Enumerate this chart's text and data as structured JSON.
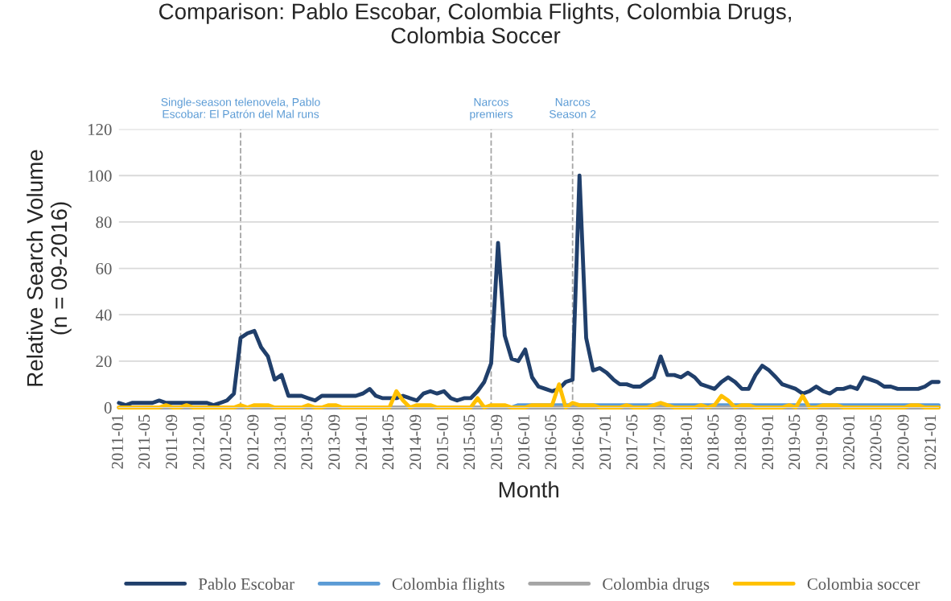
{
  "chart_data": {
    "type": "line",
    "title": "Comparison: Pablo Escobar, Colombia Flights, Colombia Drugs,\nColombia Soccer",
    "xlabel": "Month",
    "ylabel": "Relative Search Volume\n(n = 09-2016)",
    "x": [
      "2011-01",
      "2011-02",
      "2011-03",
      "2011-04",
      "2011-05",
      "2011-06",
      "2011-07",
      "2011-08",
      "2011-09",
      "2011-10",
      "2011-11",
      "2011-12",
      "2012-01",
      "2012-02",
      "2012-03",
      "2012-04",
      "2012-05",
      "2012-06",
      "2012-07",
      "2012-08",
      "2012-09",
      "2012-10",
      "2012-11",
      "2012-12",
      "2013-01",
      "2013-02",
      "2013-03",
      "2013-04",
      "2013-05",
      "2013-06",
      "2013-07",
      "2013-08",
      "2013-09",
      "2013-10",
      "2013-11",
      "2013-12",
      "2014-01",
      "2014-02",
      "2014-03",
      "2014-04",
      "2014-05",
      "2014-06",
      "2014-07",
      "2014-08",
      "2014-09",
      "2014-10",
      "2014-11",
      "2014-12",
      "2015-01",
      "2015-02",
      "2015-03",
      "2015-04",
      "2015-05",
      "2015-06",
      "2015-07",
      "2015-08",
      "2015-09",
      "2015-10",
      "2015-11",
      "2015-12",
      "2016-01",
      "2016-02",
      "2016-03",
      "2016-04",
      "2016-05",
      "2016-06",
      "2016-07",
      "2016-08",
      "2016-09",
      "2016-10",
      "2016-11",
      "2016-12",
      "2017-01",
      "2017-02",
      "2017-03",
      "2017-04",
      "2017-05",
      "2017-06",
      "2017-07",
      "2017-08",
      "2017-09",
      "2017-10",
      "2017-11",
      "2017-12",
      "2018-01",
      "2018-02",
      "2018-03",
      "2018-04",
      "2018-05",
      "2018-06",
      "2018-07",
      "2018-08",
      "2018-09",
      "2018-10",
      "2018-11",
      "2018-12",
      "2019-01",
      "2019-02",
      "2019-03",
      "2019-04",
      "2019-05",
      "2019-06",
      "2019-07",
      "2019-08",
      "2019-09",
      "2019-10",
      "2019-11",
      "2019-12",
      "2020-01",
      "2020-02",
      "2020-03",
      "2020-04",
      "2020-05",
      "2020-06",
      "2020-07",
      "2020-08",
      "2020-09",
      "2020-10",
      "2020-11",
      "2020-12",
      "2021-01",
      "2021-02"
    ],
    "xlim": [
      "2011-01",
      "2021-02"
    ],
    "xticks": [
      "2011-01",
      "2011-05",
      "2011-09",
      "2012-01",
      "2012-05",
      "2012-09",
      "2013-01",
      "2013-05",
      "2013-09",
      "2014-01",
      "2014-05",
      "2014-09",
      "2015-01",
      "2015-05",
      "2015-09",
      "2016-01",
      "2016-05",
      "2016-09",
      "2017-01",
      "2017-05",
      "2017-09",
      "2018-01",
      "2018-05",
      "2018-09",
      "2019-01",
      "2019-05",
      "2019-09",
      "2020-01",
      "2020-05",
      "2020-09",
      "2021-01"
    ],
    "series": [
      {
        "name": "Pablo Escobar",
        "color": "#203f6b",
        "values": [
          2,
          1,
          2,
          2,
          2,
          2,
          3,
          2,
          2,
          2,
          2,
          2,
          2,
          2,
          1,
          2,
          3,
          6,
          30,
          32,
          33,
          26,
          22,
          12,
          14,
          5,
          5,
          5,
          4,
          3,
          5,
          5,
          5,
          5,
          5,
          5,
          6,
          8,
          5,
          4,
          4,
          4,
          5,
          4,
          3,
          6,
          7,
          6,
          7,
          4,
          3,
          4,
          4,
          7,
          11,
          19,
          71,
          31,
          21,
          20,
          25,
          13,
          9,
          8,
          7,
          8,
          11,
          12,
          100,
          30,
          16,
          17,
          15,
          12,
          10,
          10,
          9,
          9,
          11,
          13,
          22,
          14,
          14,
          13,
          15,
          13,
          10,
          9,
          8,
          11,
          13,
          11,
          8,
          8,
          14,
          18,
          16,
          13,
          10,
          9,
          8,
          6,
          7,
          9,
          7,
          6,
          8,
          8,
          9,
          8,
          13,
          12,
          11,
          9,
          9,
          8,
          8,
          8,
          8,
          9,
          11,
          11
        ]
      },
      {
        "name": "Colombia flights",
        "color": "#5b9bd5",
        "values": [
          null,
          null,
          null,
          null,
          null,
          null,
          null,
          null,
          null,
          null,
          null,
          null,
          null,
          null,
          null,
          null,
          null,
          null,
          null,
          null,
          null,
          null,
          null,
          null,
          null,
          null,
          null,
          null,
          null,
          null,
          null,
          null,
          null,
          null,
          null,
          null,
          null,
          null,
          null,
          null,
          null,
          null,
          null,
          null,
          null,
          null,
          null,
          null,
          null,
          null,
          null,
          null,
          null,
          null,
          null,
          null,
          0,
          0,
          0,
          1,
          1,
          1,
          1,
          1,
          1,
          1,
          1,
          1,
          1,
          1,
          1,
          1,
          1,
          1,
          1,
          1,
          1,
          1,
          1,
          1,
          1,
          1,
          1,
          1,
          1,
          1,
          1,
          1,
          1,
          1,
          1,
          1,
          1,
          1,
          1,
          1,
          1,
          1,
          1,
          1,
          1,
          1,
          1,
          1,
          1,
          1,
          1,
          1,
          1,
          1,
          1,
          1,
          1,
          1,
          1,
          1,
          1,
          1,
          1,
          1,
          1,
          1
        ]
      },
      {
        "name": "Colombia drugs",
        "color": "#a5a5a5",
        "values": [
          0,
          0,
          0,
          0,
          0,
          0,
          0,
          0,
          0,
          0,
          0,
          0,
          0,
          0,
          0,
          0,
          0,
          0,
          0,
          0,
          0,
          0,
          0,
          0,
          0,
          0,
          0,
          0,
          0,
          0,
          0,
          0,
          0,
          0,
          0,
          0,
          0,
          0,
          0,
          0,
          0,
          0,
          0,
          0,
          0,
          0,
          0,
          0,
          0,
          0,
          0,
          0,
          0,
          0,
          0,
          0,
          0,
          0,
          0,
          0,
          0,
          0,
          0,
          0,
          0,
          0,
          0,
          0,
          0,
          0,
          0,
          0,
          0,
          0,
          0,
          0,
          0,
          0,
          0,
          0,
          0,
          0,
          0,
          0,
          0,
          0,
          0,
          0,
          0,
          0,
          0,
          0,
          0,
          0,
          0,
          0,
          0,
          0,
          0,
          0,
          0,
          0,
          0,
          0,
          0,
          0,
          0,
          0,
          0,
          0,
          0,
          0,
          0,
          0,
          0,
          0,
          0,
          0,
          0,
          0,
          0,
          0
        ]
      },
      {
        "name": "Colombia soccer",
        "color": "#ffc000",
        "values": [
          0,
          0,
          0,
          0,
          0,
          0,
          0,
          1,
          0,
          0,
          1,
          0,
          0,
          0,
          0,
          0,
          0,
          0,
          1,
          0,
          1,
          1,
          1,
          0,
          0,
          0,
          0,
          0,
          1,
          0,
          0,
          1,
          1,
          0,
          0,
          0,
          0,
          0,
          0,
          0,
          0,
          7,
          3,
          0,
          1,
          1,
          1,
          0,
          0,
          0,
          0,
          0,
          0,
          4,
          0,
          1,
          1,
          1,
          0,
          0,
          0,
          1,
          1,
          1,
          1,
          10,
          0,
          2,
          1,
          1,
          1,
          0,
          0,
          0,
          0,
          1,
          0,
          0,
          0,
          1,
          2,
          1,
          0,
          0,
          0,
          0,
          1,
          0,
          1,
          5,
          3,
          0,
          1,
          1,
          0,
          0,
          0,
          0,
          0,
          1,
          0,
          5,
          0,
          0,
          1,
          1,
          1,
          0,
          0,
          0,
          0,
          0,
          0,
          0,
          0,
          0,
          0,
          1,
          1,
          0,
          0,
          0
        ]
      }
    ],
    "ylim": [
      0,
      120
    ],
    "yticks": [
      0,
      20,
      40,
      60,
      80,
      100,
      120
    ],
    "grid": "y",
    "legend": "bottom",
    "ref_lines": [
      {
        "axis": "x",
        "value": "2012-07",
        "label": "Single-season telenovela, Pablo\nEscobar: El Patrón del Mal runs",
        "color": "#a5a5a5",
        "line_style": "dashed"
      },
      {
        "axis": "x",
        "value": "2015-08",
        "label": "Narcos\npremiers",
        "color": "#a5a5a5",
        "line_style": "dashed"
      },
      {
        "axis": "x",
        "value": "2016-08",
        "label": "Narcos\nSeason 2",
        "color": "#a5a5a5",
        "line_style": "dashed"
      }
    ]
  }
}
